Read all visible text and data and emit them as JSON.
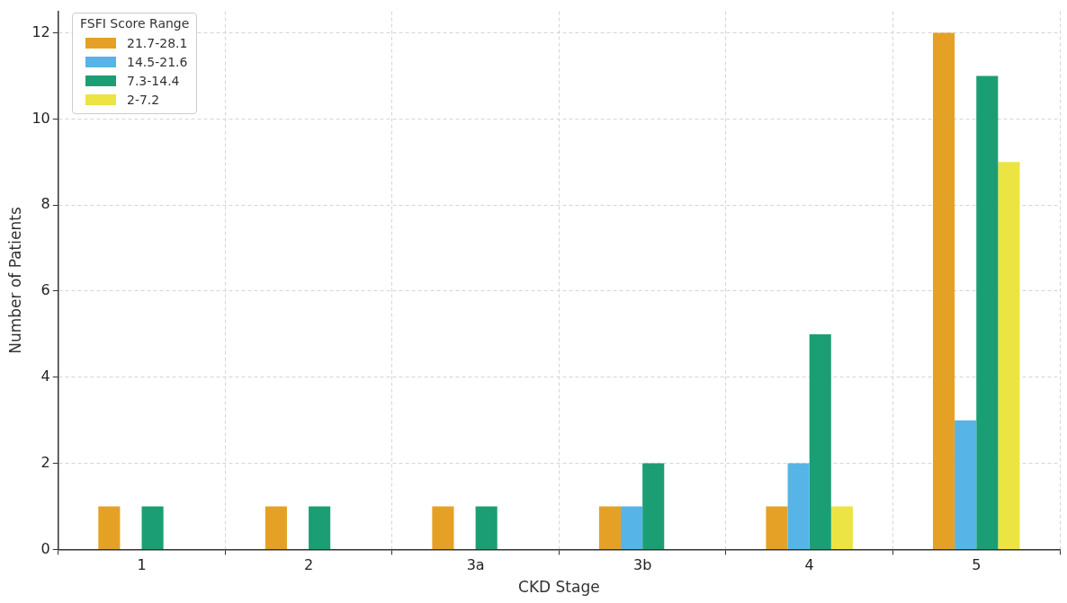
{
  "chart_data": {
    "type": "bar",
    "xlabel": "CKD Stage",
    "ylabel": "Number of Patients",
    "legend_title": "FSFI Score Range",
    "categories": [
      "1",
      "2",
      "3a",
      "3b",
      "4",
      "5"
    ],
    "series": [
      {
        "name": "21.7-28.1",
        "color": "#e5a126",
        "values": [
          1,
          1,
          1,
          1,
          1,
          12
        ]
      },
      {
        "name": "14.5-21.6",
        "color": "#56b4e6",
        "values": [
          0,
          0,
          0,
          1,
          2,
          3
        ]
      },
      {
        "name": "7.3-14.4",
        "color": "#1c9e74",
        "values": [
          1,
          1,
          1,
          2,
          5,
          11
        ]
      },
      {
        "name": "2-7.2",
        "color": "#ece443",
        "values": [
          0,
          0,
          0,
          0,
          1,
          9
        ]
      }
    ],
    "ylim": [
      0,
      12.5
    ],
    "yticks": [
      0,
      2,
      4,
      6,
      8,
      10,
      12
    ],
    "grid": true,
    "legend": "top left"
  }
}
